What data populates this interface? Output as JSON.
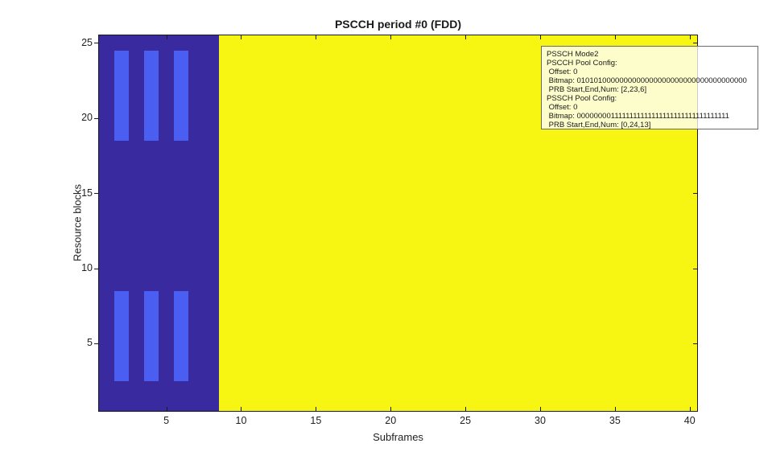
{
  "chart_data": {
    "type": "heatmap",
    "title": "PSCCH period #0 (FDD)",
    "xlabel": "Subframes",
    "ylabel": "Resource blocks",
    "xlim": [
      0.5,
      40.5
    ],
    "ylim": [
      0.5,
      25.5
    ],
    "xticks": [
      5,
      10,
      15,
      20,
      25,
      30,
      35,
      40
    ],
    "yticks": [
      5,
      10,
      15,
      20,
      25
    ],
    "grid": false,
    "regions": [
      {
        "name": "pscch-pool-region",
        "x": [
          0.5,
          8.5
        ],
        "y": [
          0.5,
          25.5
        ],
        "color": "#3a2aa0"
      },
      {
        "name": "pssch-pool-region",
        "x": [
          8.5,
          40.5
        ],
        "y": [
          0.5,
          25.5
        ],
        "color": "#f7f613"
      }
    ],
    "pscch_allocations": {
      "subframe_centers": [
        2,
        4,
        6
      ],
      "subframe_halfwidth": 0.5,
      "prb_bands": [
        [
          2.5,
          8.5
        ],
        [
          18.5,
          24.5
        ]
      ],
      "color": "#4a5ff2"
    },
    "colors": {
      "axis": "#1a1a1a",
      "tick_label": "#1f1f1f",
      "annotation_border": "#6b6b6b"
    }
  },
  "annotation": {
    "lines": [
      "PSSCH Mode2",
      "PSCCH Pool Config:",
      " Offset: 0",
      " Bitmap: 0101010000000000000000000000000000000000",
      " PRB Start,End,Num: [2,23,6]",
      "PSSCH Pool Config:",
      " Offset: 0",
      " Bitmap: 0000000011111111111111111111111111111111",
      " PRB Start,End,Num: [0,24,13]"
    ]
  }
}
